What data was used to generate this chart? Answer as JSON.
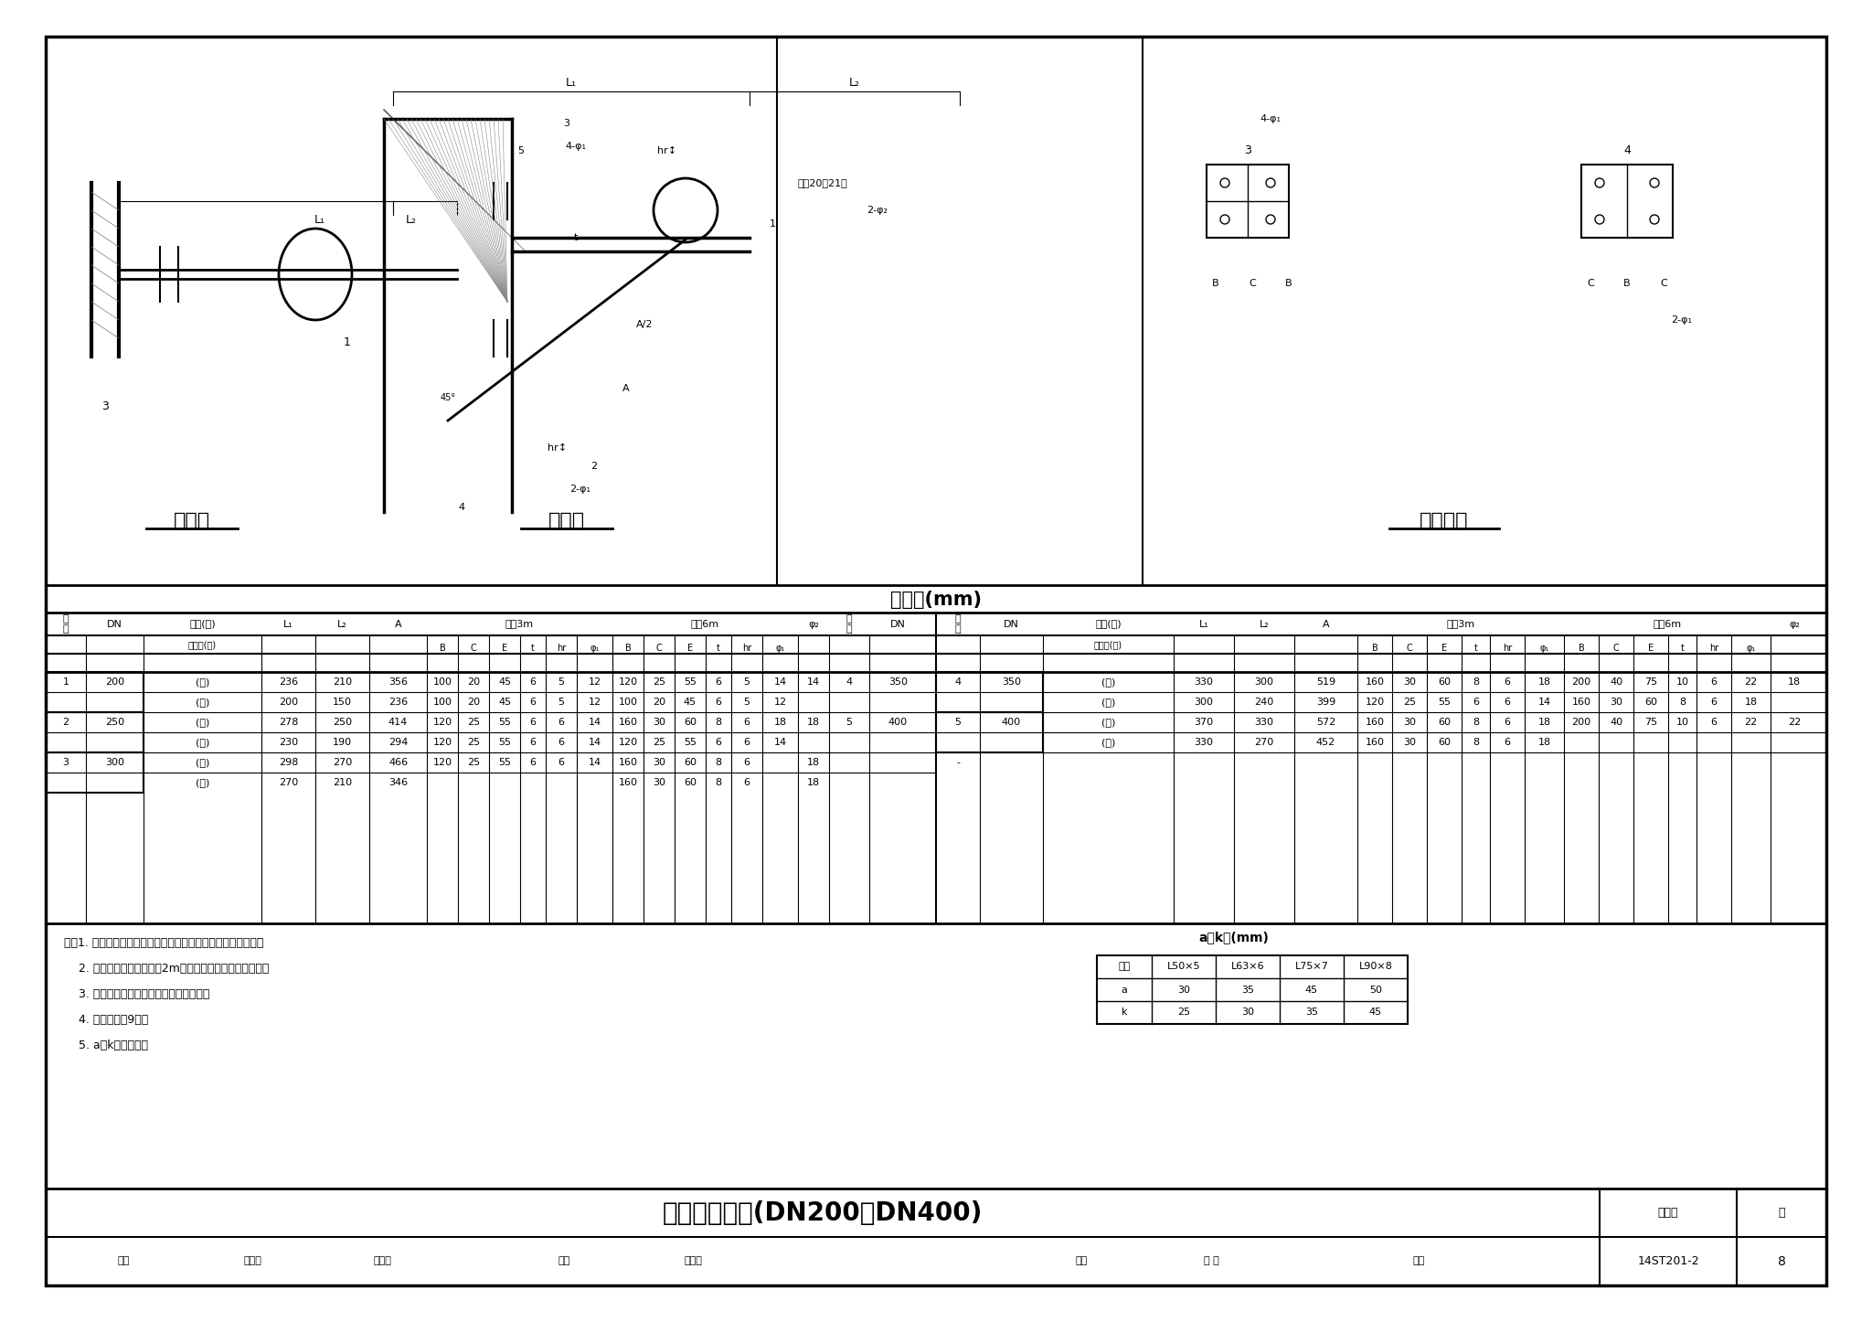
{
  "page_bg": "#ffffff",
  "outer_border_color": "#000000",
  "title": "单管支架安装(DN200～DN400)",
  "title_fontsize": 22,
  "atlas_no": "14ST201-2",
  "page_no": "8",
  "diagram_title1": "平面图",
  "diagram_title2": "立面图",
  "diagram_title3": "钢板详图",
  "table_title": "尺寸表(mm)",
  "ak_title": "a、k值(mm)",
  "notes": [
    "注：1. 膨胀螺栓按混凝土建筑锚栓技术规范或规定的要求选用。",
    "    2. 明装支架安装高度小于2m时，横杆末端应做倒角处理。",
    "    3. 选用时不符合本图条件，应另行核算。",
    "    4. 材料表见第9页。",
    "    5. a、k值见右表。"
  ],
  "ak_table": {
    "headers": [
      "角钢",
      "L50×5",
      "L63×6",
      "L75×7",
      "L90×8"
    ],
    "rows": [
      [
        "a",
        "30",
        "35",
        "45",
        "50"
      ],
      [
        "k",
        "25",
        "30",
        "35",
        "45"
      ]
    ]
  },
  "main_table_headers_left": {
    "row1": [
      "序号",
      "DN",
      "保温(一)\n不保温(二)",
      "L₁",
      "L₂",
      "A",
      "间距3m",
      "",
      "间距6m",
      "",
      "φ₂",
      "序号",
      "DN"
    ],
    "row2": [
      "",
      "",
      "",
      "",
      "",
      "",
      "B C E t hr φ₁",
      "",
      "B C E t hr φ₁",
      "",
      "",
      "",
      ""
    ]
  },
  "table_data_left": [
    {
      "seq": "1",
      "dn": "200",
      "type": "(一)",
      "L1": "236",
      "L2": "210",
      "A": "356",
      "B3m": "100",
      "C3m": "20",
      "E3m": "45",
      "t3m": "6",
      "hr3m": "5",
      "phi1_3m": "12",
      "B6m": "120",
      "C6m": "25",
      "E6m": "55",
      "t6m": "6",
      "hr6m": "5",
      "phi1_6m": "14",
      "phi2": "14"
    },
    {
      "seq": "",
      "dn": "",
      "type": "(二)",
      "L1": "200",
      "L2": "150",
      "A": "236",
      "B3m": "100",
      "C3m": "20",
      "E3m": "45",
      "t3m": "6",
      "hr3m": "5",
      "phi1_3m": "12",
      "B6m": "100",
      "C6m": "20",
      "E6m": "45",
      "t6m": "6",
      "hr6m": "5",
      "phi1_6m": "12",
      "phi2": ""
    },
    {
      "seq": "2",
      "dn": "250",
      "type": "(一)",
      "L1": "278",
      "L2": "250",
      "A": "414",
      "B3m": "120",
      "C3m": "25",
      "E3m": "55",
      "t3m": "6",
      "hr3m": "6",
      "phi1_3m": "14",
      "B6m": "160",
      "C6m": "30",
      "E6m": "60",
      "t6m": "8",
      "hr6m": "6",
      "phi1_6m": "18",
      "phi2": "18"
    },
    {
      "seq": "",
      "dn": "",
      "type": "(二)",
      "L1": "230",
      "L2": "190",
      "A": "294",
      "B3m": "120",
      "C3m": "25",
      "E3m": "55",
      "t3m": "6",
      "hr3m": "6",
      "phi1_3m": "14",
      "B6m": "120",
      "C6m": "25",
      "E6m": "55",
      "t6m": "6",
      "hr6m": "6",
      "phi1_6m": "14",
      "phi2": ""
    },
    {
      "seq": "3",
      "dn": "300",
      "type": "(一)",
      "L1": "298",
      "L2": "270",
      "A": "466",
      "B3m": "120",
      "C3m": "25",
      "E3m": "55",
      "t3m": "6",
      "hr3m": "6",
      "phi1_3m": "14",
      "B6m": "160",
      "C6m": "30",
      "E6m": "60",
      "t6m": "8",
      "hr6m": "6",
      "phi1_6m": "",
      "phi2": "18"
    },
    {
      "seq": "",
      "dn": "",
      "type": "(二)",
      "L1": "270",
      "L2": "210",
      "A": "346",
      "B3m": "",
      "C3m": "",
      "E3m": "",
      "t3m": "",
      "hr3m": "",
      "phi1_3m": "",
      "B6m": "160",
      "C6m": "30",
      "E6m": "60",
      "t6m": "8",
      "hr6m": "6",
      "phi1_6m": "",
      "phi2": "18"
    }
  ],
  "table_data_right": [
    {
      "seq": "4",
      "dn": "350",
      "type": "(一)",
      "L1": "330",
      "L2": "300",
      "A": "519",
      "B3m": "160",
      "C3m": "30",
      "E3m": "60",
      "t3m": "8",
      "hr3m": "6",
      "phi1_3m": "18",
      "B6m": "200",
      "C6m": "40",
      "E6m": "75",
      "t6m": "10",
      "hr6m": "6",
      "phi1_6m": "22",
      "phi2": "18"
    },
    {
      "seq": "",
      "dn": "",
      "type": "(二)",
      "L1": "300",
      "L2": "240",
      "A": "399",
      "B3m": "120",
      "C3m": "25",
      "E3m": "55",
      "t3m": "6",
      "hr3m": "6",
      "phi1_3m": "14",
      "B6m": "160",
      "C6m": "30",
      "E6m": "60",
      "t6m": "8",
      "hr6m": "6",
      "phi1_6m": "18",
      "phi2": ""
    },
    {
      "seq": "5",
      "dn": "400",
      "type": "(一)",
      "L1": "370",
      "L2": "330",
      "A": "572",
      "B3m": "160",
      "C3m": "30",
      "E3m": "60",
      "t3m": "8",
      "hr3m": "6",
      "phi1_3m": "18",
      "B6m": "200",
      "C6m": "40",
      "E6m": "75",
      "t6m": "10",
      "hr6m": "6",
      "phi1_6m": "22",
      "phi2": "22"
    },
    {
      "seq": "",
      "dn": "",
      "type": "(二)",
      "L1": "330",
      "L2": "270",
      "A": "452",
      "B3m": "160",
      "C3m": "30",
      "E3m": "60",
      "t3m": "8",
      "hr3m": "6",
      "phi1_3m": "18",
      "B6m": "",
      "C6m": "",
      "E6m": "",
      "t6m": "",
      "hr6m": "",
      "phi1_6m": "",
      "phi2": ""
    },
    {
      "seq": "-",
      "dn": "",
      "type": "",
      "L1": "",
      "L2": "",
      "A": "",
      "B3m": "",
      "C3m": "",
      "E3m": "",
      "t3m": "",
      "hr3m": "",
      "phi1_3m": "",
      "B6m": "",
      "C6m": "",
      "E6m": "",
      "t6m": "",
      "hr6m": "",
      "phi1_6m": "",
      "phi2": ""
    }
  ],
  "bottom_bar": {
    "review": "审核",
    "reviewer_name": "张先群",
    "drawer": "孙光群",
    "checker": "校对",
    "checker_name": "赵际娜",
    "designer": "设计",
    "designer_name": "解 清",
    "page_label": "页",
    "atlas_label": "图集号"
  }
}
